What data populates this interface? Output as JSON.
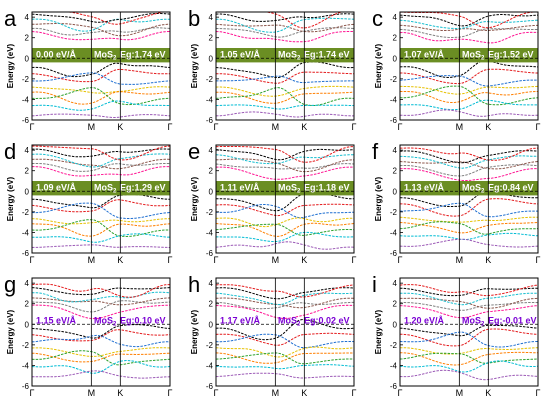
{
  "figure": {
    "ylabel": "Energy (eV)",
    "path_labels": [
      "Γ",
      "M",
      "K",
      "Γ"
    ],
    "yticks": [
      -6,
      -4,
      -2,
      0,
      2,
      4
    ],
    "ylim": [
      -6,
      4.5
    ],
    "band_colors": [
      "#000000",
      "#e41a1c",
      "#1f6fd1",
      "#e6c000",
      "#ff7f00",
      "#2ca02c",
      "#00bcd4",
      "#9b59b6",
      "#ff1493",
      "#7f7f7f",
      "#8c564b",
      "#17becf"
    ],
    "gap_band_color_filled": "#6b8e23",
    "annotation_text_color": "#7b00d4"
  },
  "chart_data": [
    {
      "panel": "a",
      "type": "line",
      "strain": "0.00 eV/Å",
      "material": "MoS2",
      "bandgap": "Eg:1.74 eV",
      "gap_highlight": true
    },
    {
      "panel": "b",
      "type": "line",
      "strain": "1.05 eV/Å",
      "material": "MoS2",
      "bandgap": "Eg:1.74 eV",
      "gap_highlight": true
    },
    {
      "panel": "c",
      "type": "line",
      "strain": "1.07 eV/Å",
      "material": "MoS2",
      "bandgap": "Eg:1.52 eV",
      "gap_highlight": true
    },
    {
      "panel": "d",
      "type": "line",
      "strain": "1.09 eV/Å",
      "material": "MoS2",
      "bandgap": "Eg:1.29 eV",
      "gap_highlight": true
    },
    {
      "panel": "e",
      "type": "line",
      "strain": "1.11 eV/Å",
      "material": "MoS2",
      "bandgap": "Eg:1.18 eV",
      "gap_highlight": true
    },
    {
      "panel": "f",
      "type": "line",
      "strain": "1.13 eV/Å",
      "material": "MoS2",
      "bandgap": "Eg:0.84 eV",
      "gap_highlight": true
    },
    {
      "panel": "g",
      "type": "line",
      "strain": "1.15 eV/Å",
      "material": "MoS2",
      "bandgap": "Eg:0.10 eV",
      "gap_highlight": false
    },
    {
      "panel": "h",
      "type": "line",
      "strain": "1.17 eV/Å",
      "material": "MoS2",
      "bandgap": "Eg:0.02 eV",
      "gap_highlight": false
    },
    {
      "panel": "i",
      "type": "line",
      "strain": "1.20 eV/Å",
      "material": "MoS2",
      "bandgap": "Eg:-0.01 eV",
      "gap_highlight": false
    }
  ]
}
